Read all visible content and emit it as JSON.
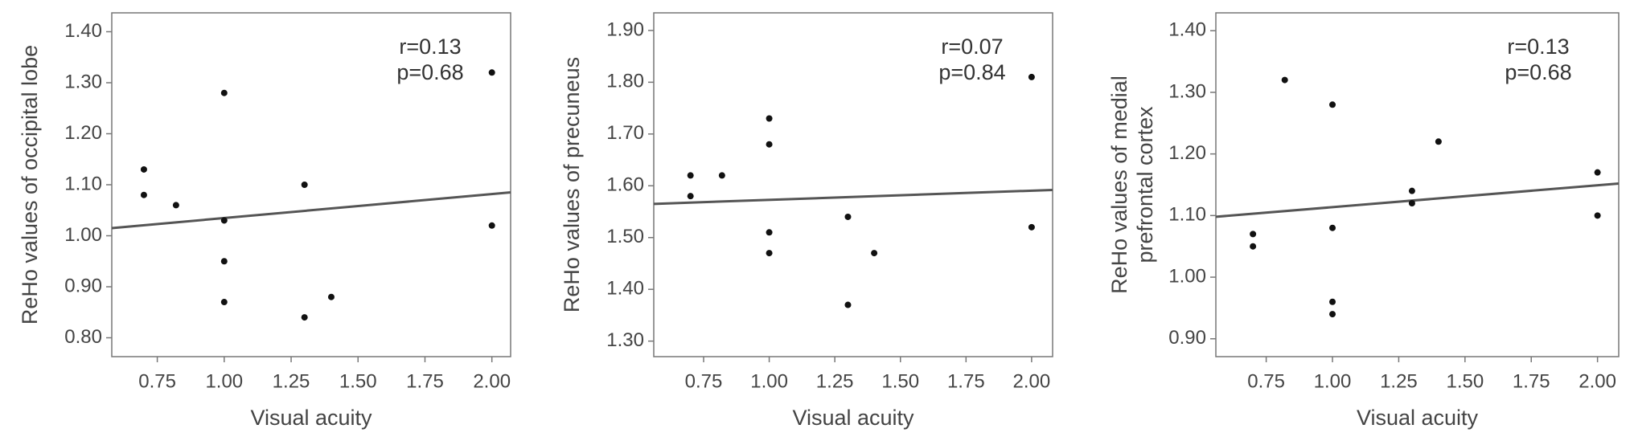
{
  "chart_data": [
    {
      "type": "scatter",
      "xlabel": "Visual acuity",
      "ylabel": "ReHo values of occipital lobe",
      "annotations": [
        "r=0.13",
        "p=0.68"
      ],
      "x": [
        0.7,
        0.7,
        0.82,
        1.0,
        1.0,
        1.0,
        1.0,
        1.3,
        1.3,
        1.4,
        2.0,
        2.0
      ],
      "values": [
        1.13,
        1.08,
        1.06,
        1.28,
        1.03,
        0.95,
        0.87,
        1.1,
        0.84,
        0.88,
        1.32,
        1.02
      ],
      "fit_line": {
        "x": [
          0.58,
          2.07
        ],
        "y": [
          1.015,
          1.085
        ]
      },
      "color": "#111111",
      "line_color": "#555555",
      "xlim": [
        0.58,
        2.07
      ],
      "ylim": [
        0.763,
        1.437
      ],
      "xticks": [
        {
          "value": 0.75,
          "label": "0.75"
        },
        {
          "value": 1.0,
          "label": "1.00"
        },
        {
          "value": 1.25,
          "label": "1.25"
        },
        {
          "value": 1.5,
          "label": "1.50"
        },
        {
          "value": 1.75,
          "label": "1.75"
        },
        {
          "value": 2.0,
          "label": "2.00"
        }
      ],
      "yticks": [
        {
          "value": 0.8,
          "label": "0.80"
        },
        {
          "value": 0.9,
          "label": "0.90"
        },
        {
          "value": 1.0,
          "label": "1.00"
        },
        {
          "value": 1.1,
          "label": "1.10"
        },
        {
          "value": 1.2,
          "label": "1.20"
        },
        {
          "value": 1.3,
          "label": "1.30"
        },
        {
          "value": 1.4,
          "label": "1.40"
        }
      ]
    },
    {
      "type": "scatter",
      "xlabel": "Visual acuity",
      "ylabel": "ReHo values of precuneus",
      "annotations": [
        "r=0.07",
        "p=0.84"
      ],
      "x": [
        0.7,
        0.7,
        0.82,
        1.0,
        1.0,
        1.0,
        1.0,
        1.3,
        1.3,
        1.4,
        2.0,
        2.0
      ],
      "values": [
        1.62,
        1.58,
        1.62,
        1.73,
        1.68,
        1.51,
        1.47,
        1.54,
        1.37,
        1.47,
        1.81,
        1.52
      ],
      "fit_line": {
        "x": [
          0.56,
          2.08
        ],
        "y": [
          1.565,
          1.592
        ]
      },
      "color": "#111111",
      "line_color": "#555555",
      "xlim": [
        0.56,
        2.08
      ],
      "ylim": [
        1.27,
        1.934
      ],
      "xticks": [
        {
          "value": 0.75,
          "label": "0.75"
        },
        {
          "value": 1.0,
          "label": "1.00"
        },
        {
          "value": 1.25,
          "label": "1.25"
        },
        {
          "value": 1.5,
          "label": "1.50"
        },
        {
          "value": 1.75,
          "label": "1.75"
        },
        {
          "value": 2.0,
          "label": "2.00"
        }
      ],
      "yticks": [
        {
          "value": 1.3,
          "label": "1.30"
        },
        {
          "value": 1.4,
          "label": "1.40"
        },
        {
          "value": 1.5,
          "label": "1.50"
        },
        {
          "value": 1.6,
          "label": "1.60"
        },
        {
          "value": 1.7,
          "label": "1.70"
        },
        {
          "value": 1.8,
          "label": "1.80"
        },
        {
          "value": 1.9,
          "label": "1.90"
        }
      ]
    },
    {
      "type": "scatter",
      "xlabel": "Visual acuity",
      "ylabel": [
        "ReHo values of medial",
        "prefrontal cortex"
      ],
      "annotations": [
        "r=0.13",
        "p=0.68"
      ],
      "x": [
        0.7,
        0.7,
        0.82,
        1.0,
        1.0,
        1.0,
        1.0,
        1.3,
        1.3,
        1.4,
        2.0,
        2.0
      ],
      "values": [
        1.07,
        1.05,
        1.32,
        1.28,
        1.08,
        0.96,
        0.94,
        1.14,
        1.12,
        1.22,
        1.17,
        1.1
      ],
      "fit_line": {
        "x": [
          0.56,
          2.08
        ],
        "y": [
          1.098,
          1.152
        ]
      },
      "color": "#111111",
      "line_color": "#555555",
      "xlim": [
        0.56,
        2.08
      ],
      "ylim": [
        0.871,
        1.429
      ],
      "xticks": [
        {
          "value": 0.75,
          "label": "0.75"
        },
        {
          "value": 1.0,
          "label": "1.00"
        },
        {
          "value": 1.25,
          "label": "1.25"
        },
        {
          "value": 1.5,
          "label": "1.50"
        },
        {
          "value": 1.75,
          "label": "1.75"
        },
        {
          "value": 2.0,
          "label": "2.00"
        }
      ],
      "yticks": [
        {
          "value": 0.9,
          "label": "0.90"
        },
        {
          "value": 1.0,
          "label": "1.00"
        },
        {
          "value": 1.1,
          "label": "1.10"
        },
        {
          "value": 1.2,
          "label": "1.20"
        },
        {
          "value": 1.3,
          "label": "1.30"
        },
        {
          "value": 1.4,
          "label": "1.40"
        }
      ]
    }
  ]
}
